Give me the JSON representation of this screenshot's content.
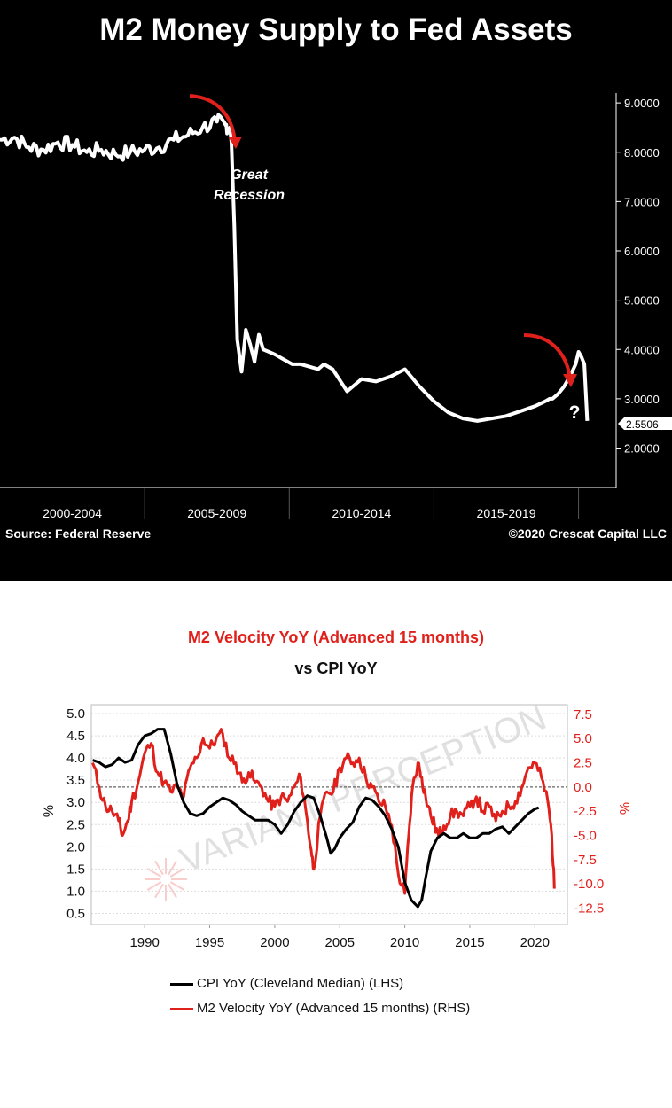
{
  "top": {
    "title": "M2 Money Supply to Fed Assets",
    "source": "Source: Federal Reserve",
    "copyright": "©2020 Crescat Capital LLC",
    "annotations": {
      "line1": "Great",
      "line2": "Recession",
      "question": "?"
    }
  },
  "bottom": {
    "title_line1": "M2 Velocity YoY (Advanced 15 months)",
    "title_line2": "vs CPI YoY",
    "watermark": "VARIANT PERCEPTION",
    "legend": [
      "CPI YoY (Cleveland Median) (LHS)",
      "M2 Velocity YoY (Advanced 15 months) (RHS)"
    ]
  },
  "colors": {
    "red": "#e0201b",
    "black": "#000000",
    "white": "#ffffff"
  },
  "chart_data": [
    {
      "type": "line",
      "title": "M2 Money Supply to Fed Assets",
      "x_tick_labels": [
        "2000-2004",
        "2005-2009",
        "2010-2014",
        "2015-2019"
      ],
      "y_tick_labels": [
        "9.0000",
        "8.0000",
        "7.0000",
        "6.0000",
        "5.0000",
        "4.0000",
        "3.0000",
        "2.0000"
      ],
      "ylim": [
        1.2,
        9.2
      ],
      "last_value_label": "2.5506",
      "series": [
        {
          "x": [
            2000.0,
            2000.5,
            2001.0,
            2001.5,
            2002.0,
            2002.5,
            2003.0,
            2003.5,
            2004.0,
            2004.5,
            2005.0,
            2005.5,
            2006.0,
            2006.5,
            2007.0,
            2007.5,
            2007.8,
            2007.95,
            2008.0,
            2008.1,
            2008.2,
            2008.35,
            2008.5,
            2008.65,
            2008.8,
            2008.95,
            2009.1,
            2009.3,
            2009.5,
            2009.8,
            2010.1,
            2010.4,
            2010.7,
            2011.0,
            2011.2,
            2011.5,
            2012.0,
            2012.5,
            2013.0,
            2013.5,
            2014.0,
            2014.5,
            2015.0,
            2015.5,
            2016.0,
            2016.5,
            2017.0,
            2017.5,
            2018.0,
            2018.5,
            2018.85,
            2019.0,
            2019.1,
            2019.3,
            2019.5,
            2019.7,
            2019.9,
            2020.0,
            2020.1,
            2020.2,
            2020.3
          ],
          "values": [
            8.25,
            8.3,
            8.1,
            8.05,
            8.2,
            8.15,
            8.0,
            8.05,
            7.95,
            8.0,
            8.05,
            8.1,
            8.25,
            8.35,
            8.5,
            8.62,
            8.55,
            8.5,
            8.2,
            6.5,
            4.2,
            3.55,
            4.4,
            4.1,
            3.75,
            4.3,
            4.0,
            3.95,
            3.9,
            3.8,
            3.7,
            3.7,
            3.65,
            3.6,
            3.7,
            3.6,
            3.15,
            3.4,
            3.35,
            3.45,
            3.6,
            3.25,
            2.95,
            2.72,
            2.6,
            2.55,
            2.6,
            2.65,
            2.75,
            2.85,
            2.95,
            3.0,
            3.0,
            3.1,
            3.25,
            3.45,
            3.7,
            3.95,
            3.85,
            3.7,
            2.55
          ]
        }
      ]
    },
    {
      "type": "line",
      "title": "M2 Velocity YoY (Advanced 15 months) vs CPI YoY",
      "x_ticks": [
        1990,
        1995,
        2000,
        2005,
        2010,
        2015,
        2020
      ],
      "xlim": [
        1985.9,
        2022.5
      ],
      "left_axis": {
        "label": "%",
        "ticks": [
          5.0,
          4.5,
          4.0,
          3.5,
          3.0,
          2.5,
          2.0,
          1.5,
          1.0,
          0.5
        ],
        "ylim": [
          0.25,
          5.2
        ]
      },
      "right_axis": {
        "label": "%",
        "ticks": [
          7.5,
          5.0,
          2.5,
          0.0,
          -2.5,
          -5.0,
          -7.5,
          -10.0,
          -12.5
        ],
        "ylim": [
          -14.2,
          8.5
        ]
      },
      "reference_line_rhs": 0,
      "series": [
        {
          "name": "CPI YoY (Cleveland Median) (LHS)",
          "axis": "left",
          "x": [
            1986,
            1986.5,
            1987,
            1987.5,
            1988,
            1988.5,
            1989,
            1989.5,
            1990,
            1990.5,
            1991,
            1991.5,
            1992,
            1992.5,
            1993,
            1993.5,
            1994,
            1994.5,
            1995,
            1995.5,
            1996,
            1996.5,
            1997,
            1997.5,
            1998,
            1998.5,
            1999,
            1999.5,
            2000,
            2000.5,
            2001,
            2001.5,
            2002,
            2002.5,
            2003,
            2003.5,
            2004,
            2004.3,
            2004.6,
            2005,
            2005.5,
            2006,
            2006.5,
            2007,
            2007.5,
            2008,
            2008.5,
            2009,
            2009.5,
            2010,
            2010.5,
            2011,
            2011.3,
            2011.6,
            2012,
            2012.5,
            2013,
            2013.5,
            2014,
            2014.5,
            2015,
            2015.5,
            2016,
            2016.5,
            2017,
            2017.5,
            2018,
            2018.5,
            2019,
            2019.5,
            2020,
            2020.3
          ],
          "values": [
            3.95,
            3.9,
            3.8,
            3.85,
            4.0,
            3.9,
            3.95,
            4.3,
            4.5,
            4.55,
            4.65,
            4.65,
            4.1,
            3.4,
            3.0,
            2.75,
            2.7,
            2.75,
            2.9,
            3.0,
            3.1,
            3.05,
            2.95,
            2.8,
            2.7,
            2.6,
            2.6,
            2.6,
            2.5,
            2.3,
            2.5,
            2.8,
            3.0,
            3.15,
            3.1,
            2.7,
            2.2,
            1.85,
            1.95,
            2.2,
            2.4,
            2.55,
            2.9,
            3.1,
            3.05,
            2.9,
            2.7,
            2.4,
            2.0,
            1.2,
            0.8,
            0.65,
            0.8,
            1.3,
            1.9,
            2.2,
            2.3,
            2.2,
            2.2,
            2.3,
            2.2,
            2.2,
            2.3,
            2.3,
            2.4,
            2.45,
            2.3,
            2.45,
            2.6,
            2.75,
            2.85,
            2.88
          ]
        },
        {
          "name": "M2 Velocity YoY (Advanced 15 months) (RHS)",
          "axis": "right",
          "x": [
            1986,
            1986.5,
            1987,
            1987.5,
            1988,
            1988.3,
            1988.7,
            1989,
            1989.5,
            1990,
            1990.5,
            1991,
            1991.5,
            1992,
            1992.5,
            1993,
            1993.5,
            1994,
            1994.5,
            1995,
            1995.5,
            1996,
            1996.5,
            1997,
            1997.5,
            1998,
            1998.5,
            1999,
            1999.5,
            2000,
            2000.5,
            2001,
            2001.5,
            2002,
            2002.4,
            2002.8,
            2003,
            2003.5,
            2004,
            2004.5,
            2005,
            2005.5,
            2006,
            2006.5,
            2007,
            2007.5,
            2008,
            2008.5,
            2009,
            2009.5,
            2010,
            2010.3,
            2010.6,
            2011,
            2011.3,
            2011.6,
            2012,
            2012.3,
            2012.6,
            2013,
            2013.5,
            2014,
            2014.5,
            2015,
            2015.5,
            2016,
            2016.5,
            2017,
            2017.5,
            2018,
            2018.5,
            2019,
            2019.5,
            2020,
            2020.5,
            2021,
            2021.3,
            2021.5
          ],
          "values": [
            2.5,
            0.0,
            -2.0,
            -2.5,
            -3.5,
            -5.0,
            -3.5,
            -1.5,
            0.5,
            3.5,
            4.5,
            1.5,
            0.5,
            -0.5,
            0.0,
            -1.0,
            2.0,
            3.0,
            5.0,
            4.0,
            5.0,
            5.5,
            3.0,
            2.5,
            0.5,
            1.5,
            0.5,
            0.0,
            -1.5,
            -2.0,
            -1.0,
            -1.5,
            0.0,
            1.0,
            -2.5,
            -6.5,
            -8.5,
            -3.0,
            -0.5,
            -0.5,
            2.0,
            3.0,
            2.5,
            3.0,
            1.0,
            0.0,
            -1.5,
            -2.0,
            -4.0,
            -9.0,
            -11.0,
            -5.0,
            0.0,
            2.5,
            1.0,
            -1.0,
            -3.0,
            -4.0,
            -5.0,
            -4.0,
            -3.0,
            -2.5,
            -3.0,
            -2.0,
            -1.0,
            -2.5,
            -2.0,
            -3.5,
            -2.5,
            -2.0,
            -1.5,
            0.0,
            2.0,
            2.5,
            1.0,
            -1.5,
            -5.0,
            -10.5
          ]
        }
      ]
    }
  ]
}
